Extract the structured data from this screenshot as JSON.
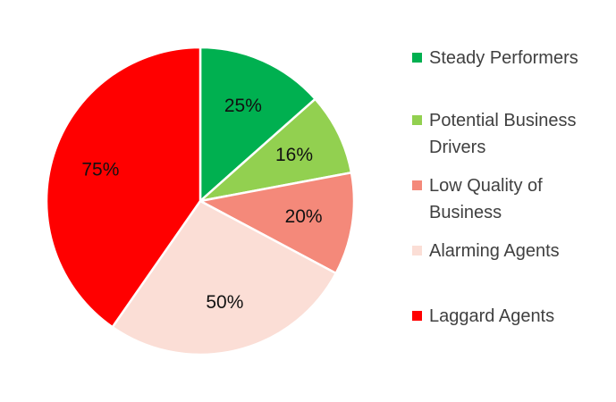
{
  "chart_data": {
    "type": "pie",
    "title": "",
    "slices": [
      {
        "name": "Steady Performers",
        "value": 25,
        "label": "25%",
        "color": "#00b050",
        "legend_lines": [
          "Steady Performers"
        ]
      },
      {
        "name": "Potential Business Drivers",
        "value": 16,
        "label": "16%",
        "color": "#92d050",
        "legend_lines": [
          "Potential Business",
          "Drivers"
        ]
      },
      {
        "name": "Low Quality of Business",
        "value": 20,
        "label": "20%",
        "color": "#f4897a",
        "legend_lines": [
          "Low Quality of",
          "Business"
        ]
      },
      {
        "name": "Alarming Agents",
        "value": 50,
        "label": "50%",
        "color": "#fbded6",
        "legend_lines": [
          "Alarming Agents"
        ]
      },
      {
        "name": "Laggard Agents",
        "value": 75,
        "label": "75%",
        "color": "#ff0000",
        "legend_lines": [
          "Laggard Agents"
        ]
      }
    ],
    "legend_position": "right",
    "start_angle": "top, clockwise"
  }
}
